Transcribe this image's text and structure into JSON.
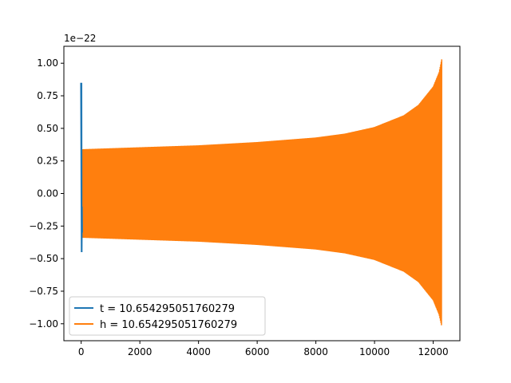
{
  "chart_data": {
    "type": "line",
    "title": "",
    "xlabel": "",
    "ylabel": "",
    "xlim": [
      -590,
      12910
    ],
    "ylim": [
      -1.13,
      1.13
    ],
    "y_offset_label": "1e−22",
    "x_ticks": [
      0,
      2000,
      4000,
      6000,
      8000,
      10000,
      12000
    ],
    "x_tick_labels": [
      "0",
      "2000",
      "4000",
      "6000",
      "8000",
      "10000",
      "12000"
    ],
    "y_ticks": [
      1.0,
      0.75,
      0.5,
      0.25,
      0.0,
      -0.25,
      -0.5,
      -0.75,
      -1.0
    ],
    "y_tick_labels": [
      "1.00",
      "0.75",
      "0.50",
      "0.25",
      "0.00",
      "−0.25",
      "−0.50",
      "−0.75",
      "−1.00"
    ],
    "grid": false,
    "legend_position": "lower-left",
    "series": [
      {
        "name": "t = 10.654295051760279",
        "color": "#1f77b4",
        "x_range": [
          0,
          30
        ],
        "envelope_upper": [
          [
            0,
            0.85
          ],
          [
            10,
            0.85
          ],
          [
            20,
            -0.1
          ],
          [
            30,
            0.3
          ]
        ],
        "envelope_lower": [
          [
            0,
            -0.45
          ],
          [
            10,
            -0.45
          ],
          [
            20,
            -0.3
          ],
          [
            30,
            -0.35
          ]
        ]
      },
      {
        "name": "h = 10.654295051760279",
        "color": "#ff7f0e",
        "x_range": [
          30,
          12290
        ],
        "envelope_upper": [
          [
            30,
            0.34
          ],
          [
            2000,
            0.355
          ],
          [
            4000,
            0.37
          ],
          [
            6000,
            0.395
          ],
          [
            8000,
            0.43
          ],
          [
            9000,
            0.46
          ],
          [
            10000,
            0.51
          ],
          [
            11000,
            0.6
          ],
          [
            11500,
            0.68
          ],
          [
            12000,
            0.82
          ],
          [
            12200,
            0.93
          ],
          [
            12290,
            1.03
          ]
        ],
        "envelope_lower": [
          [
            30,
            -0.34
          ],
          [
            2000,
            -0.355
          ],
          [
            4000,
            -0.37
          ],
          [
            6000,
            -0.395
          ],
          [
            8000,
            -0.43
          ],
          [
            9000,
            -0.46
          ],
          [
            10000,
            -0.51
          ],
          [
            11000,
            -0.6
          ],
          [
            11500,
            -0.68
          ],
          [
            12000,
            -0.82
          ],
          [
            12200,
            -0.93
          ],
          [
            12290,
            -1.02
          ]
        ]
      }
    ]
  }
}
